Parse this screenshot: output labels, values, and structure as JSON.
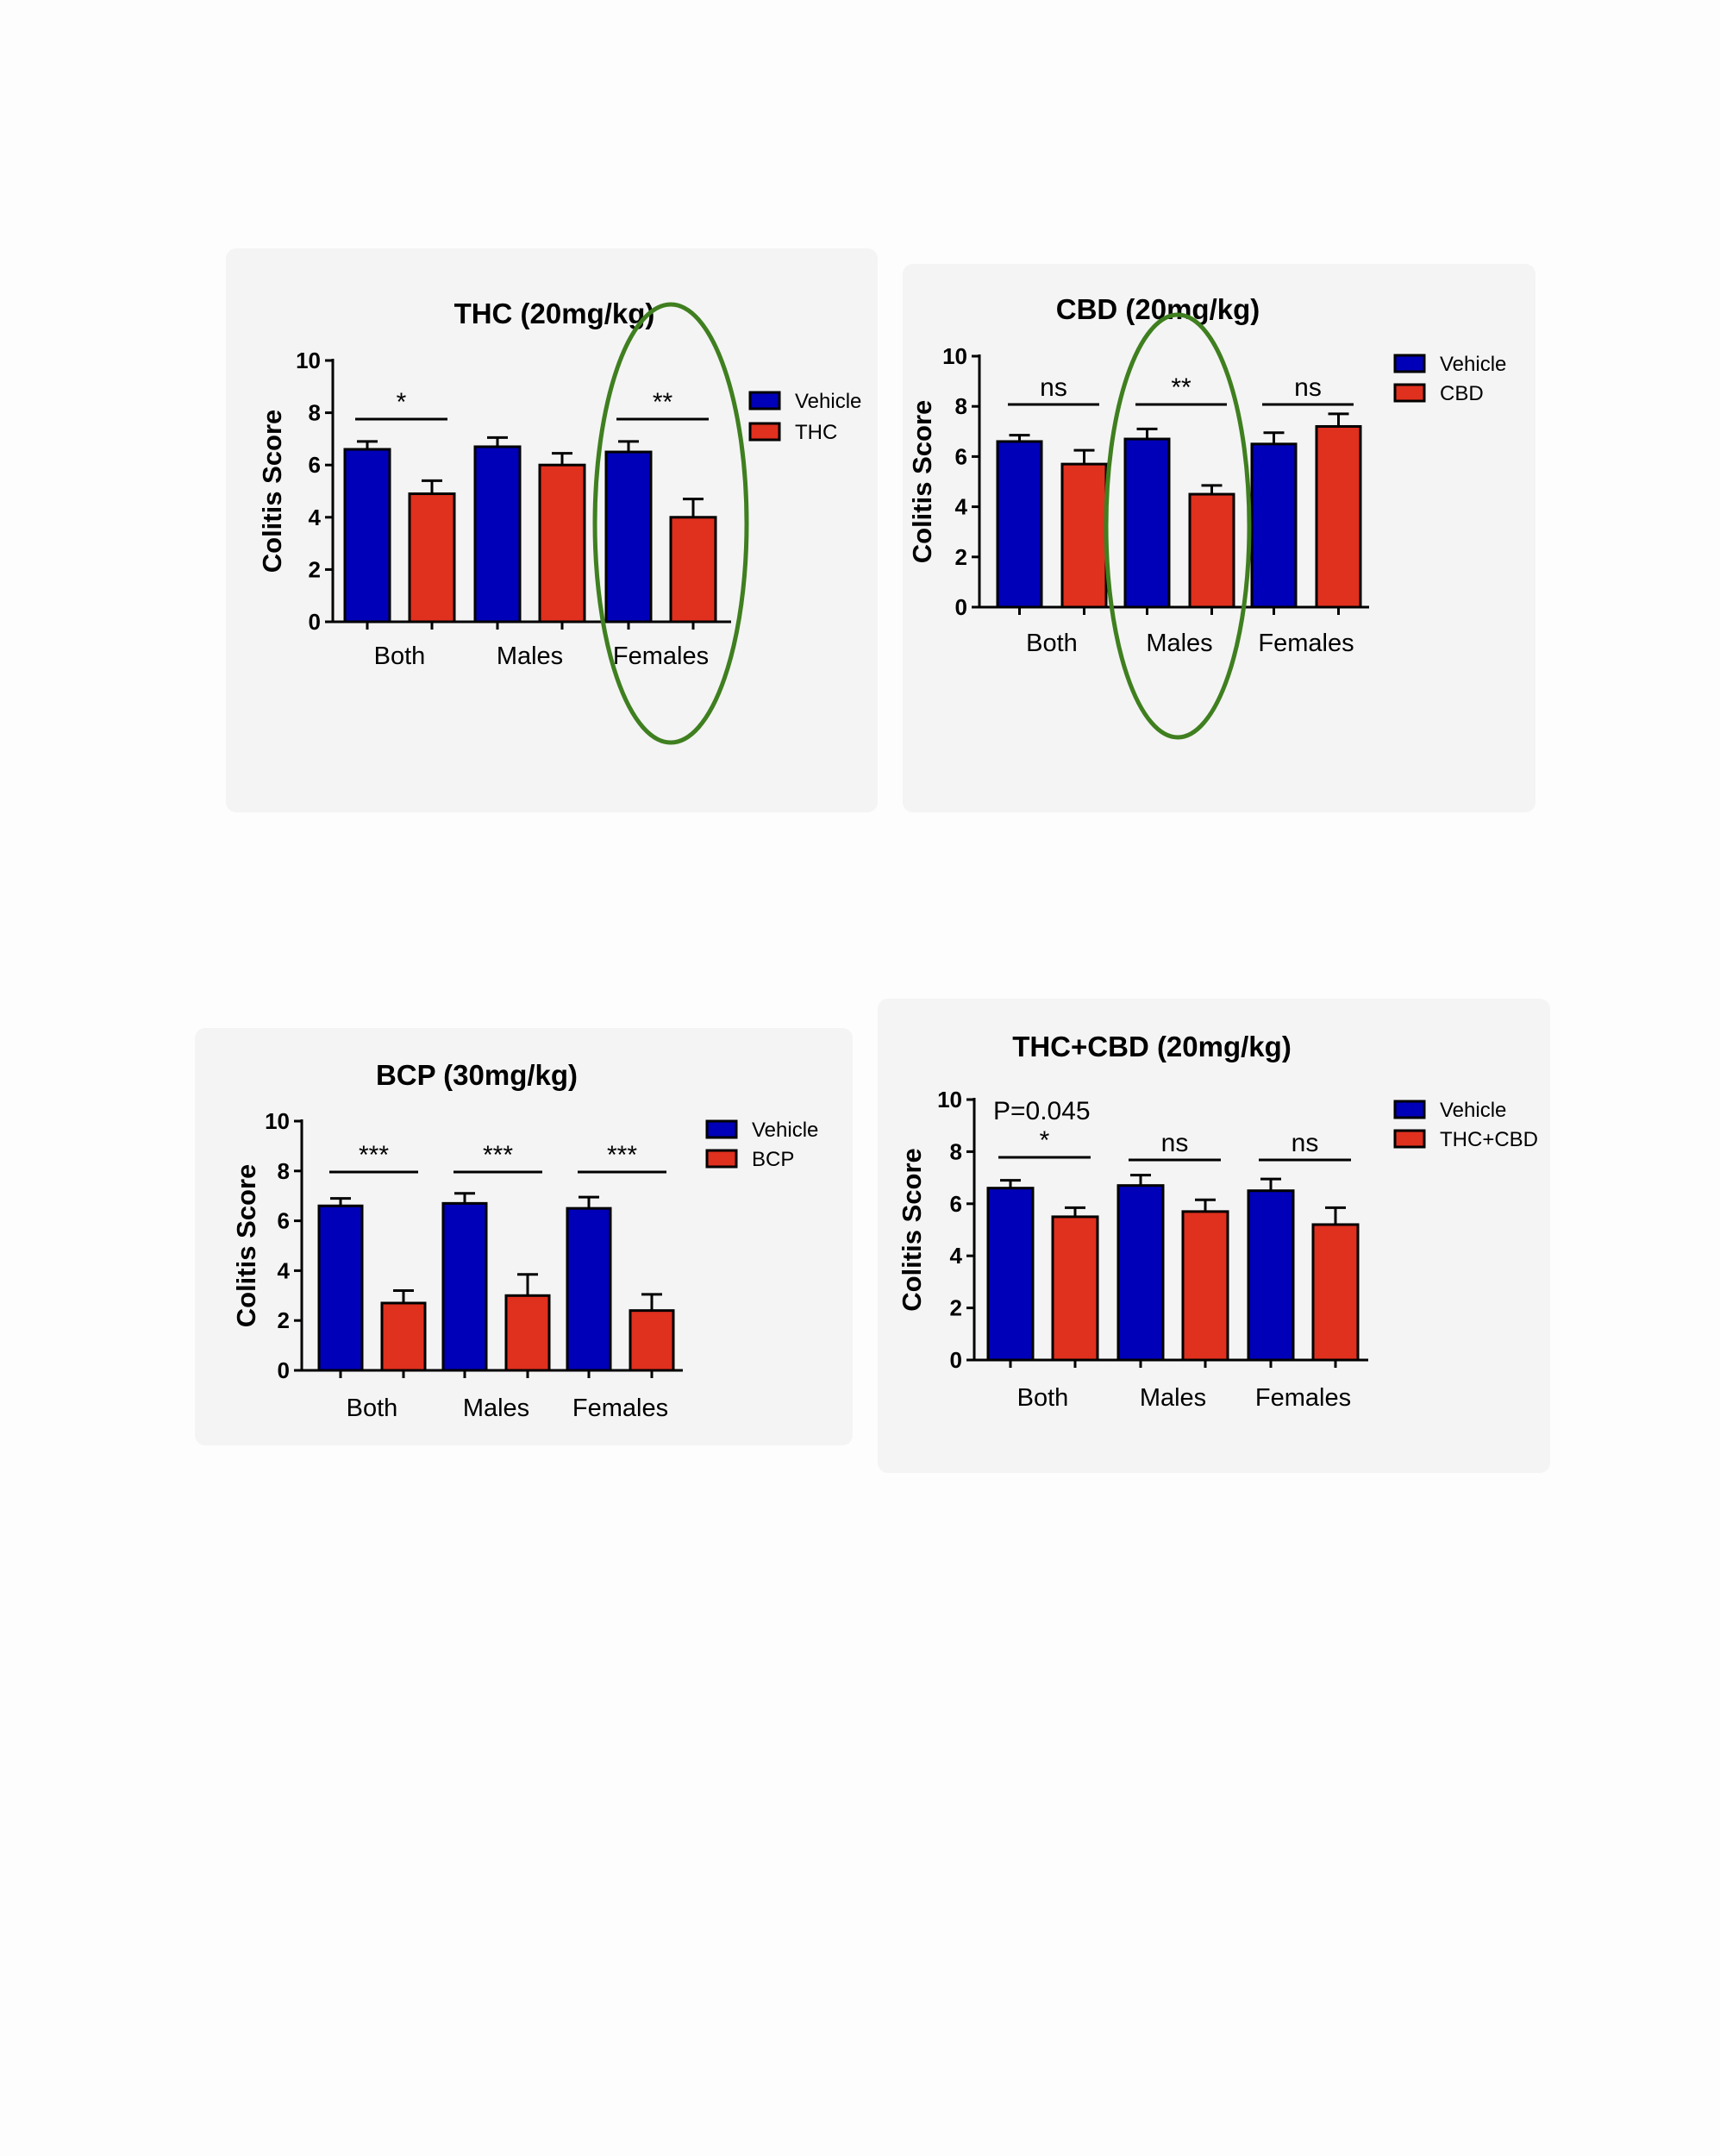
{
  "colors": {
    "vehicle": "#0000b8",
    "treatment": "#e0301e",
    "highlight": "#3f7f1f",
    "panel": "#f4f4f4"
  },
  "chart_data": [
    {
      "type": "bar",
      "title": "THC (20mg/kg)",
      "ylabel": "Colitis Score",
      "ylim": [
        0,
        10
      ],
      "yticks": [
        "0",
        "2",
        "4",
        "6",
        "8",
        "10"
      ],
      "categories": [
        "Both",
        "Males",
        "Females"
      ],
      "series": [
        {
          "name": "Vehicle",
          "values": [
            6.6,
            6.7,
            6.5
          ],
          "errors": [
            0.3,
            0.35,
            0.4
          ]
        },
        {
          "name": "THC",
          "values": [
            4.9,
            6.0,
            4.0
          ],
          "errors": [
            0.5,
            0.45,
            0.7
          ]
        }
      ],
      "significance": [
        "*",
        "",
        "**"
      ],
      "annotation": "",
      "highlight": "Females",
      "legend": "right"
    },
    {
      "type": "bar",
      "title": "CBD (20mg/kg)",
      "ylabel": "Colitis Score",
      "ylim": [
        0,
        10
      ],
      "yticks": [
        "0",
        "2",
        "4",
        "6",
        "8",
        "10"
      ],
      "categories": [
        "Both",
        "Males",
        "Females"
      ],
      "series": [
        {
          "name": "Vehicle",
          "values": [
            6.6,
            6.7,
            6.5
          ],
          "errors": [
            0.25,
            0.4,
            0.45
          ]
        },
        {
          "name": "CBD",
          "values": [
            5.7,
            4.5,
            7.2
          ],
          "errors": [
            0.55,
            0.35,
            0.5
          ]
        }
      ],
      "significance": [
        "ns",
        "**",
        "ns"
      ],
      "annotation": "",
      "highlight": "Males",
      "legend": "right"
    },
    {
      "type": "bar",
      "title": "BCP (30mg/kg)",
      "ylabel": "Colitis Score",
      "ylim": [
        0,
        10
      ],
      "yticks": [
        "0",
        "2",
        "4",
        "6",
        "8",
        "10"
      ],
      "categories": [
        "Both",
        "Males",
        "Females"
      ],
      "series": [
        {
          "name": "Vehicle",
          "values": [
            6.6,
            6.7,
            6.5
          ],
          "errors": [
            0.3,
            0.4,
            0.45
          ]
        },
        {
          "name": "BCP",
          "values": [
            2.7,
            3.0,
            2.4
          ],
          "errors": [
            0.5,
            0.85,
            0.65
          ]
        }
      ],
      "significance": [
        "***",
        "***",
        "***"
      ],
      "annotation": "",
      "highlight": "",
      "legend": "right"
    },
    {
      "type": "bar",
      "title": "THC+CBD (20mg/kg)",
      "ylabel": "Colitis Score",
      "ylim": [
        0,
        10
      ],
      "yticks": [
        "0",
        "2",
        "4",
        "6",
        "8",
        "10"
      ],
      "categories": [
        "Both",
        "Males",
        "Females"
      ],
      "series": [
        {
          "name": "Vehicle",
          "values": [
            6.6,
            6.7,
            6.5
          ],
          "errors": [
            0.3,
            0.4,
            0.45
          ]
        },
        {
          "name": "THC+CBD",
          "values": [
            5.5,
            5.7,
            5.2
          ],
          "errors": [
            0.35,
            0.45,
            0.65
          ]
        }
      ],
      "significance": [
        "*",
        "ns",
        "ns"
      ],
      "annotation": "P=0.045",
      "highlight": "",
      "legend": "right"
    }
  ]
}
